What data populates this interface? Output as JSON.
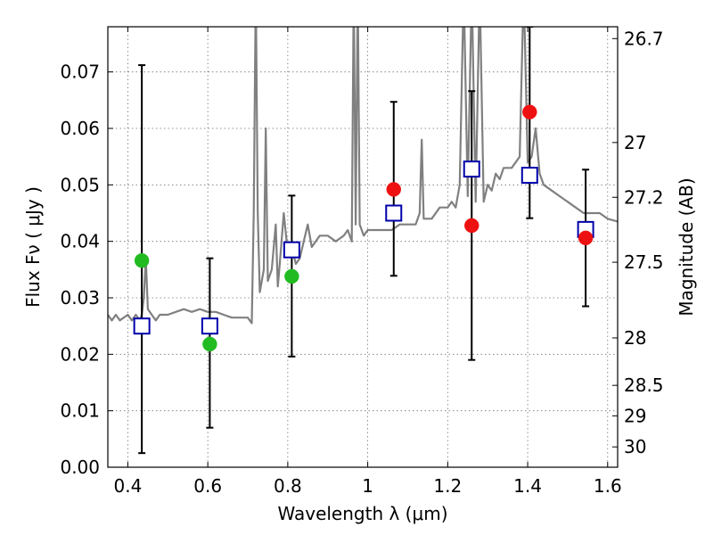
{
  "chart_data": {
    "type": "scatter",
    "xlabel": "Wavelength  λ (μm)",
    "ylabel": "Flux  Fν  ( μJy )",
    "y2label": "Magnitude (AB)",
    "xlim": [
      0.35,
      1.625
    ],
    "ylim": [
      0.0,
      0.078
    ],
    "grid": true,
    "x_ticks": [
      0.4,
      0.6,
      0.8,
      1.0,
      1.2,
      1.4,
      1.6
    ],
    "x_tick_labels": [
      "0.4",
      "0.6",
      "0.8",
      "1",
      "1.2",
      "1.4",
      "1.6"
    ],
    "y_ticks": [
      0.0,
      0.01,
      0.02,
      0.03,
      0.04,
      0.05,
      0.06,
      0.07
    ],
    "y_tick_labels": [
      "0.00",
      "0.01",
      "0.02",
      "0.03",
      "0.04",
      "0.05",
      "0.06",
      "0.07"
    ],
    "y2_ticks": [
      {
        "flux": 0.0759,
        "label": "26.7"
      },
      {
        "flux": 0.0575,
        "label": "27"
      },
      {
        "flux": 0.0478,
        "label": "27.2"
      },
      {
        "flux": 0.0363,
        "label": "27.5"
      },
      {
        "flux": 0.0229,
        "label": "28"
      },
      {
        "flux": 0.0145,
        "label": "28.5"
      },
      {
        "flux": 0.0091,
        "label": "29"
      },
      {
        "flux": 0.0036,
        "label": "30"
      }
    ],
    "series": [
      {
        "type": "line",
        "color": "#808080",
        "x": [
          0.35,
          0.36,
          0.37,
          0.38,
          0.39,
          0.4,
          0.41,
          0.42,
          0.43,
          0.435,
          0.44,
          0.445,
          0.45,
          0.46,
          0.47,
          0.48,
          0.5,
          0.52,
          0.54,
          0.56,
          0.58,
          0.6,
          0.62,
          0.64,
          0.66,
          0.68,
          0.7,
          0.71,
          0.715,
          0.72,
          0.725,
          0.73,
          0.74,
          0.745,
          0.75,
          0.76,
          0.77,
          0.775,
          0.78,
          0.79,
          0.8,
          0.81,
          0.82,
          0.83,
          0.84,
          0.85,
          0.86,
          0.87,
          0.88,
          0.9,
          0.92,
          0.94,
          0.95,
          0.96,
          0.965,
          0.97,
          0.975,
          0.98,
          0.99,
          1.0,
          1.02,
          1.04,
          1.06,
          1.08,
          1.1,
          1.12,
          1.13,
          1.135,
          1.14,
          1.15,
          1.16,
          1.18,
          1.2,
          1.21,
          1.22,
          1.23,
          1.24,
          1.25,
          1.26,
          1.27,
          1.28,
          1.29,
          1.3,
          1.31,
          1.32,
          1.33,
          1.34,
          1.36,
          1.38,
          1.39,
          1.4,
          1.41,
          1.42,
          1.43,
          1.44,
          1.46,
          1.48,
          1.5,
          1.52,
          1.54,
          1.56,
          1.58,
          1.6,
          1.625
        ],
        "y": [
          0.027,
          0.026,
          0.027,
          0.026,
          0.0265,
          0.027,
          0.026,
          0.027,
          0.026,
          0.027,
          0.03,
          0.037,
          0.028,
          0.027,
          0.026,
          0.027,
          0.027,
          0.0275,
          0.028,
          0.0275,
          0.028,
          0.0275,
          0.0275,
          0.027,
          0.0265,
          0.0265,
          0.0265,
          0.0255,
          0.045,
          0.085,
          0.045,
          0.031,
          0.035,
          0.06,
          0.033,
          0.035,
          0.043,
          0.032,
          0.036,
          0.045,
          0.038,
          0.039,
          0.036,
          0.037,
          0.04,
          0.043,
          0.039,
          0.04,
          0.041,
          0.041,
          0.04,
          0.041,
          0.042,
          0.04,
          0.085,
          0.043,
          0.085,
          0.043,
          0.041,
          0.042,
          0.042,
          0.042,
          0.042,
          0.043,
          0.043,
          0.043,
          0.045,
          0.058,
          0.044,
          0.044,
          0.044,
          0.046,
          0.046,
          0.047,
          0.046,
          0.05,
          0.085,
          0.048,
          0.085,
          0.047,
          0.085,
          0.047,
          0.05,
          0.049,
          0.052,
          0.051,
          0.053,
          0.053,
          0.055,
          0.085,
          0.054,
          0.055,
          0.06,
          0.052,
          0.05,
          0.049,
          0.048,
          0.047,
          0.046,
          0.045,
          0.045,
          0.045,
          0.044,
          0.0435
        ]
      },
      {
        "type": "errorbar",
        "color": "#000000",
        "points": [
          {
            "x": 0.435,
            "low": 0.0025,
            "high": 0.0712
          },
          {
            "x": 0.605,
            "low": 0.007,
            "high": 0.037
          },
          {
            "x": 0.81,
            "low": 0.0196,
            "high": 0.0481
          },
          {
            "x": 1.065,
            "low": 0.0339,
            "high": 0.0647
          },
          {
            "x": 1.26,
            "low": 0.019,
            "high": 0.0666
          },
          {
            "x": 1.405,
            "low": 0.0441,
            "high": 0.078
          },
          {
            "x": 1.545,
            "low": 0.0285,
            "high": 0.0527
          }
        ]
      },
      {
        "type": "scatter",
        "marker": "square",
        "color": "#0000aa",
        "x": [
          0.435,
          0.605,
          0.81,
          1.065,
          1.26,
          1.405,
          1.545
        ],
        "y": [
          0.025,
          0.025,
          0.0385,
          0.045,
          0.0528,
          0.0517,
          0.0421
        ]
      },
      {
        "type": "scatter",
        "marker": "circle",
        "color": "#22bb22",
        "x": [
          0.435,
          0.605,
          0.81
        ],
        "y": [
          0.0366,
          0.0218,
          0.0338
        ]
      },
      {
        "type": "scatter",
        "marker": "circle",
        "color": "#ee1111",
        "x": [
          1.065,
          1.26,
          1.405,
          1.545
        ],
        "y": [
          0.0492,
          0.0428,
          0.0629,
          0.0406
        ]
      }
    ]
  }
}
